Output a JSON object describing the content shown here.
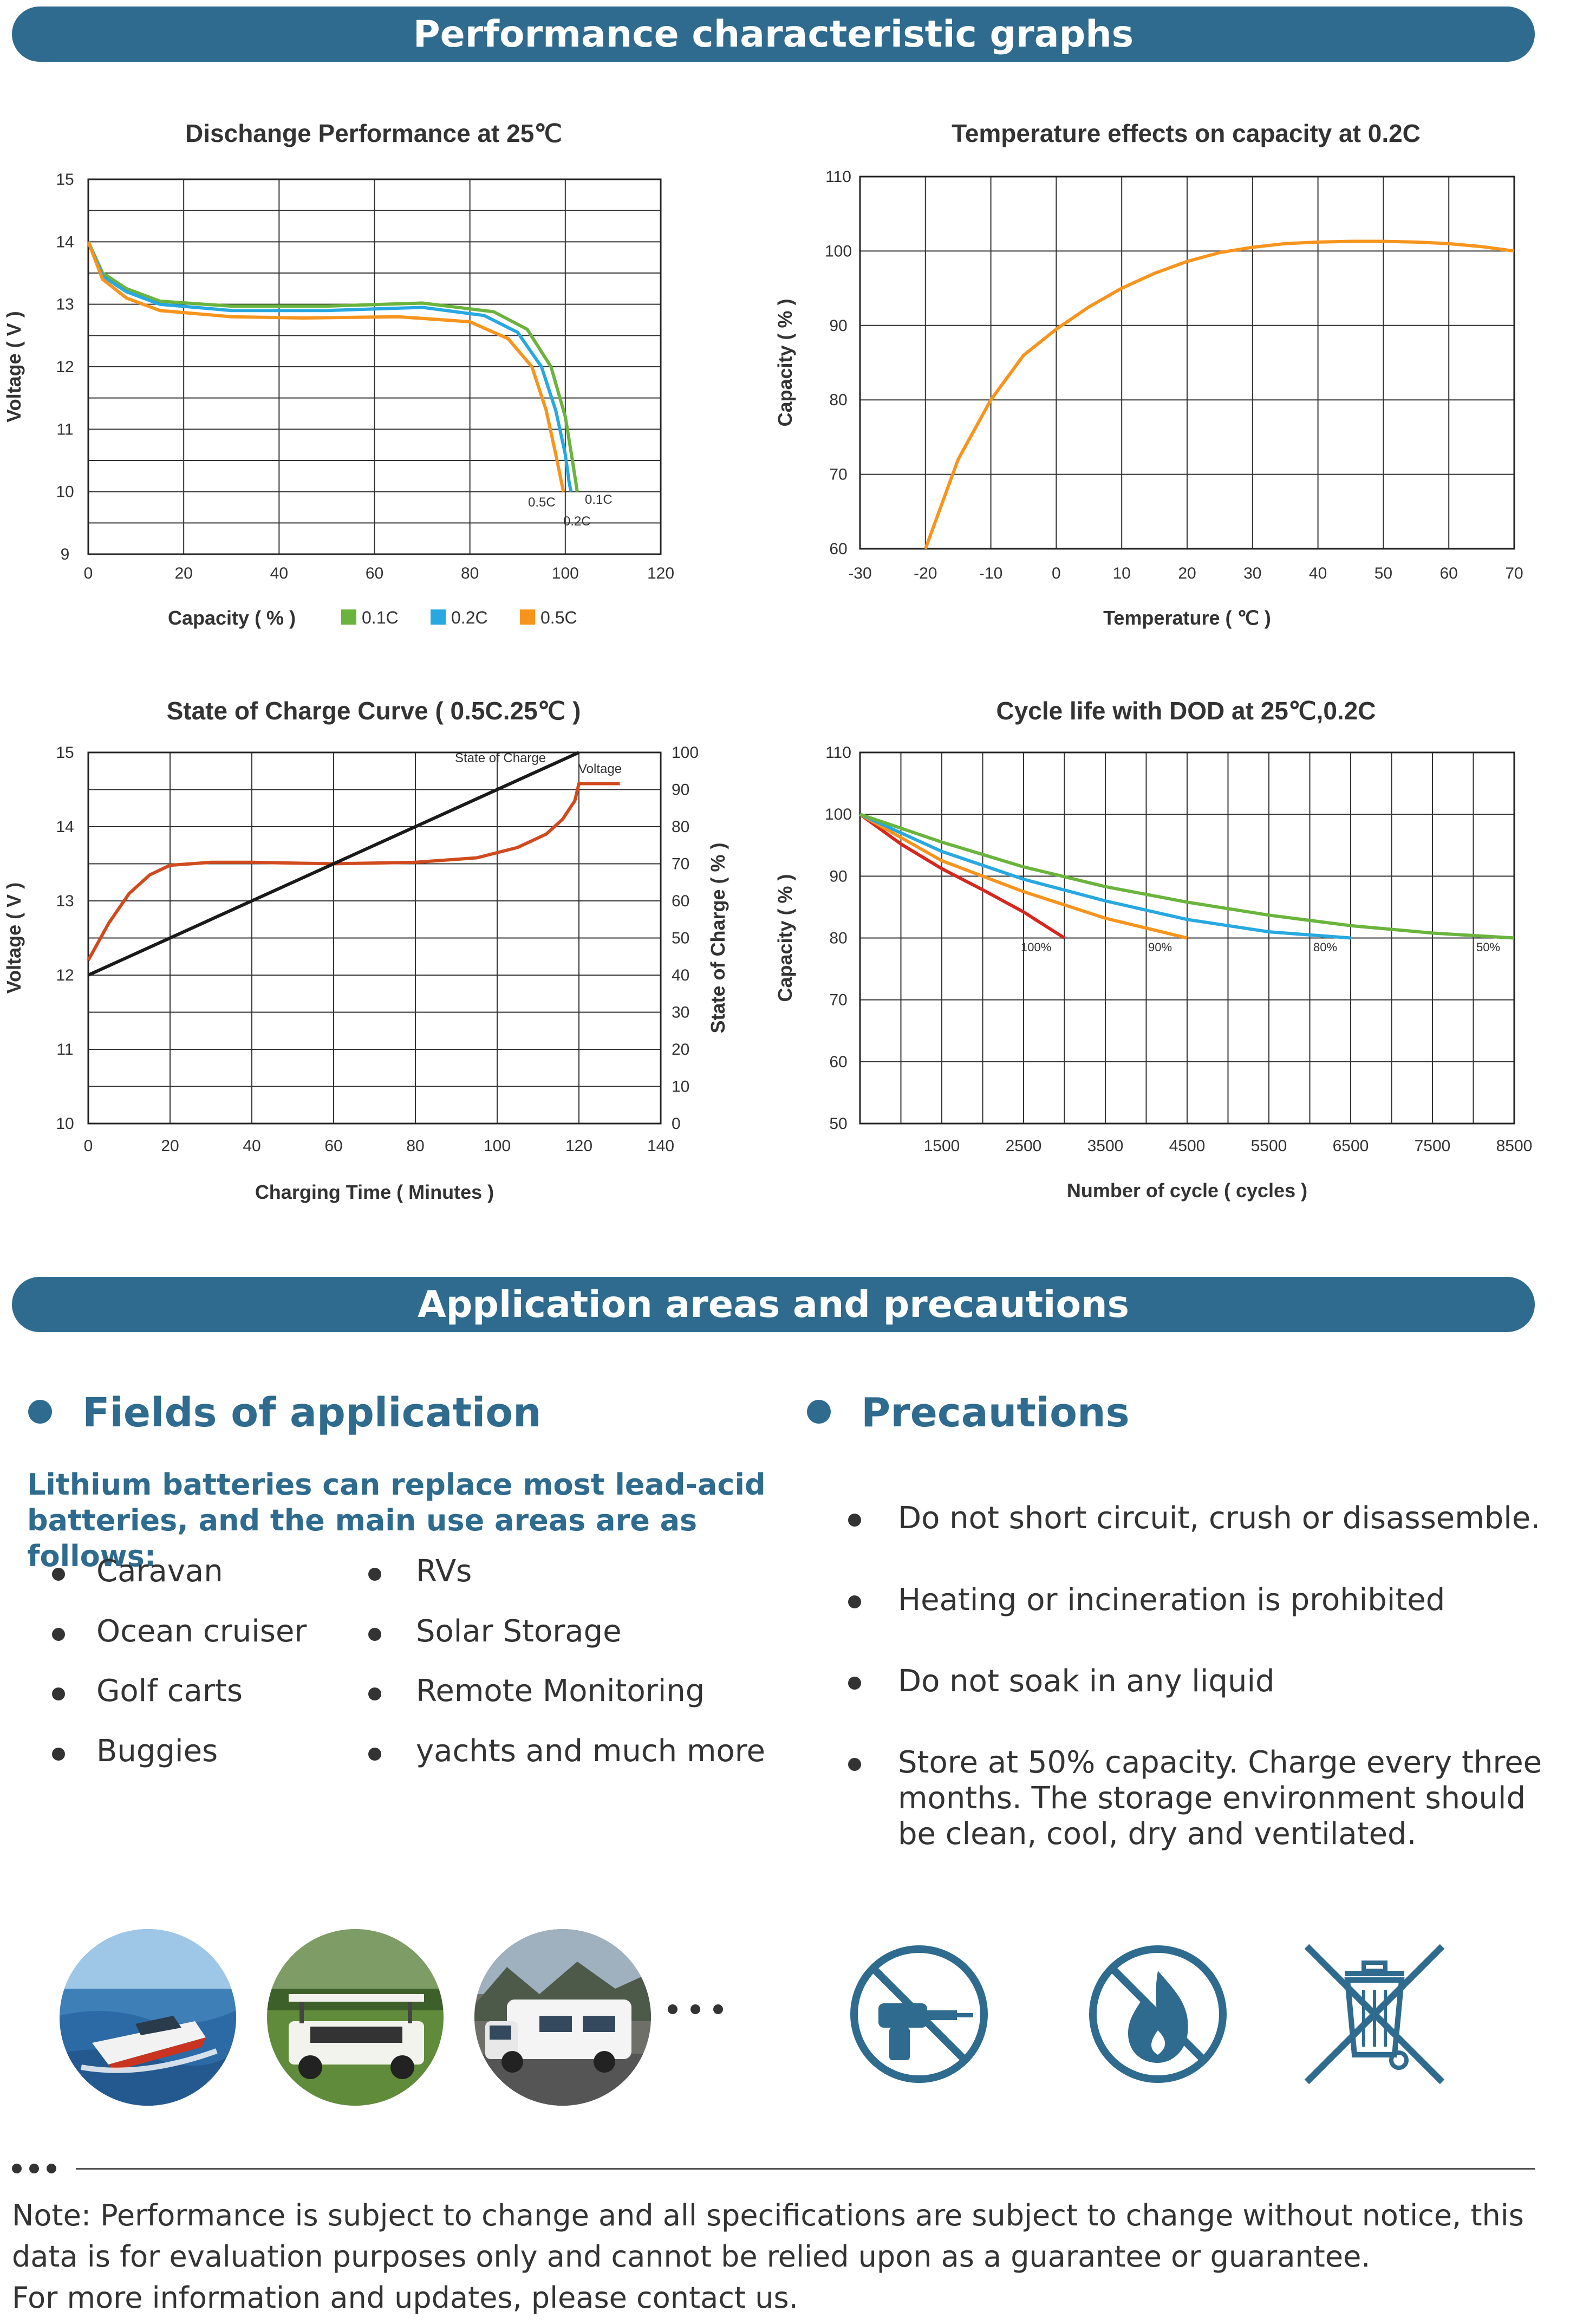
{
  "sections": {
    "graphs_title": "Performance characteristic graphs",
    "app_title": "Application areas and precautions"
  },
  "chart_data": [
    {
      "type": "line",
      "title": "Dischange Performance at 25℃",
      "xlabel": "Capacity ( % )",
      "ylabel": "Voltage ( V )",
      "xlim": [
        0,
        120
      ],
      "ylim": [
        9,
        15
      ],
      "xticks": [
        "0",
        "20",
        "40",
        "60",
        "80",
        "100",
        "120"
      ],
      "yticks": [
        "9",
        "10",
        "11",
        "12",
        "13",
        "14",
        "15"
      ],
      "grid": true,
      "legend": [
        "0.1C",
        "0.2C",
        "0.5C"
      ],
      "series": [
        {
          "name": "0.1C",
          "color": "#6ab43e",
          "x": [
            0,
            3,
            8,
            15,
            30,
            50,
            70,
            85,
            92,
            97,
            100,
            101.5,
            102.3,
            102.5
          ],
          "y": [
            14.0,
            13.5,
            13.25,
            13.05,
            12.97,
            12.97,
            13.02,
            12.88,
            12.6,
            12.0,
            11.2,
            10.5,
            10.1,
            10.0
          ]
        },
        {
          "name": "0.2C",
          "color": "#27a8e0",
          "x": [
            0,
            3,
            8,
            15,
            30,
            50,
            70,
            83,
            90,
            95,
            98,
            100,
            100.8,
            101.2
          ],
          "y": [
            14.0,
            13.45,
            13.2,
            13.0,
            12.9,
            12.9,
            12.95,
            12.82,
            12.55,
            12.0,
            11.3,
            10.6,
            10.15,
            10.0
          ]
        },
        {
          "name": "0.5C",
          "color": "#f7941d",
          "x": [
            0,
            3,
            8,
            15,
            30,
            45,
            65,
            80,
            88,
            93,
            96,
            98,
            99.2,
            99.6
          ],
          "y": [
            14.0,
            13.4,
            13.1,
            12.9,
            12.8,
            12.78,
            12.8,
            12.72,
            12.45,
            12.0,
            11.3,
            10.6,
            10.15,
            10.0
          ]
        }
      ],
      "annotations": [
        "0.5C",
        "0.1C",
        "0.2C"
      ]
    },
    {
      "type": "line",
      "title": "Temperature effects on capacity at 0.2C",
      "xlabel": "Temperature ( ℃ )",
      "ylabel": "Capacity ( % )",
      "xlim": [
        -30,
        70
      ],
      "ylim": [
        60,
        110
      ],
      "xticks": [
        "-30",
        "-20",
        "-10",
        "0",
        "10",
        "20",
        "30",
        "40",
        "50",
        "60",
        "70"
      ],
      "yticks": [
        "60",
        "70",
        "80",
        "90",
        "100",
        "110"
      ],
      "grid": true,
      "series": [
        {
          "name": "0.2C",
          "color": "#f7941d",
          "x": [
            -20,
            -15,
            -10,
            -5,
            0,
            5,
            10,
            15,
            20,
            25,
            30,
            35,
            40,
            45,
            50,
            55,
            60,
            65,
            70
          ],
          "y": [
            60,
            72,
            80,
            86,
            89.5,
            92.5,
            95,
            97,
            98.6,
            99.8,
            100.5,
            101,
            101.2,
            101.3,
            101.3,
            101.2,
            101,
            100.6,
            100
          ]
        }
      ]
    },
    {
      "type": "line",
      "title": "State of Charge Curve ( 0.5C.25℃ )",
      "xlabel": "Charging Time ( Minutes )",
      "ylabel": "Voltage ( V )",
      "y2label": "State of Charge ( % )",
      "xlim": [
        0,
        140
      ],
      "ylim": [
        10,
        15
      ],
      "y2lim": [
        0,
        100
      ],
      "xticks": [
        "0",
        "20",
        "40",
        "60",
        "80",
        "100",
        "120",
        "140"
      ],
      "yticks": [
        "10",
        "11",
        "12",
        "13",
        "14",
        "15"
      ],
      "y2ticks": [
        "0",
        "10",
        "20",
        "30",
        "40",
        "50",
        "60",
        "70",
        "80",
        "90",
        "100"
      ],
      "grid": true,
      "series": [
        {
          "name": "Voltage",
          "axis": "left",
          "color": "#d04a1e",
          "x": [
            0,
            5,
            10,
            15,
            20,
            30,
            40,
            60,
            80,
            95,
            105,
            112,
            116,
            119,
            120,
            130
          ],
          "y": [
            12.2,
            12.7,
            13.1,
            13.35,
            13.48,
            13.52,
            13.52,
            13.5,
            13.52,
            13.58,
            13.72,
            13.9,
            14.1,
            14.35,
            14.58,
            14.58
          ]
        },
        {
          "name": "State of Charge",
          "axis": "right",
          "color": "#1a1a1a",
          "x": [
            0,
            120
          ],
          "y": [
            40,
            100
          ]
        }
      ],
      "annotations": [
        "State of Charge",
        "Voltage"
      ]
    },
    {
      "type": "line",
      "title": "Cycle life with DOD at 25℃,0.2C",
      "xlabel": "Number of cycle ( cycles )",
      "ylabel": "Capacity ( % )",
      "xlim": [
        500,
        8500
      ],
      "ylim": [
        50,
        110
      ],
      "xticks": [
        "1500",
        "2500",
        "3500",
        "4500",
        "5500",
        "6500",
        "7500",
        "8500"
      ],
      "yticks": [
        "50",
        "60",
        "70",
        "80",
        "90",
        "100",
        "110"
      ],
      "grid": true,
      "series": [
        {
          "name": "100%",
          "color": "#d9261c",
          "x": [
            500,
            1000,
            1500,
            2000,
            2500,
            3000
          ],
          "y": [
            100,
            95.2,
            91.2,
            87.8,
            84.2,
            80
          ]
        },
        {
          "name": "90%",
          "color": "#f7941d",
          "x": [
            500,
            1500,
            2500,
            3500,
            4500
          ],
          "y": [
            100,
            92.5,
            87.5,
            83.2,
            80
          ]
        },
        {
          "name": "80%",
          "color": "#27a8e0",
          "x": [
            500,
            1500,
            2500,
            3500,
            4500,
            5500,
            6500
          ],
          "y": [
            100,
            94,
            89.5,
            86,
            83,
            81,
            80
          ]
        },
        {
          "name": "50%",
          "color": "#6ab43e",
          "x": [
            500,
            1500,
            2500,
            3500,
            4500,
            5500,
            6500,
            7500,
            8500
          ],
          "y": [
            100,
            95.5,
            91.5,
            88.3,
            85.8,
            83.7,
            82,
            80.8,
            80
          ]
        }
      ],
      "annotations": [
        "100%",
        "90%",
        "80%",
        "50%"
      ]
    }
  ],
  "fields": {
    "heading": "Fields of application",
    "subtitle": "Lithium batteries can replace most lead-acid batteries, and the main use areas are as follows:",
    "col1": [
      "Caravan",
      "Ocean cruiser",
      "Golf carts",
      "Buggies"
    ],
    "col2": [
      "RVs",
      "Solar Storage",
      "Remote Monitoring",
      "yachts and much more"
    ]
  },
  "precautions": {
    "heading": "Precautions",
    "items": [
      "Do not short circuit, crush or disassemble.",
      "Heating or incineration is prohibited",
      "Do not soak in any liquid",
      "Store at 50% capacity. Charge every three months. The storage environment should be clean, cool, dry and ventilated."
    ]
  },
  "icons": [
    "boat-photo",
    "golf-cart-photo",
    "caravan-photo",
    "no-disassemble-icon",
    "no-fire-icon",
    "no-trash-icon"
  ],
  "note": {
    "line1": "Note: Performance is subject to change and all specifications are subject to change without notice, this",
    "line2": "data is for evaluation purposes only and cannot be relied upon as a guarantee or guarantee.",
    "line3": "For more information and updates, please contact us."
  },
  "colors": {
    "brand": "#2e6b8e",
    "green": "#6ab43e",
    "blue": "#27a8e0",
    "orange": "#f7941d",
    "red": "#d9261c"
  }
}
